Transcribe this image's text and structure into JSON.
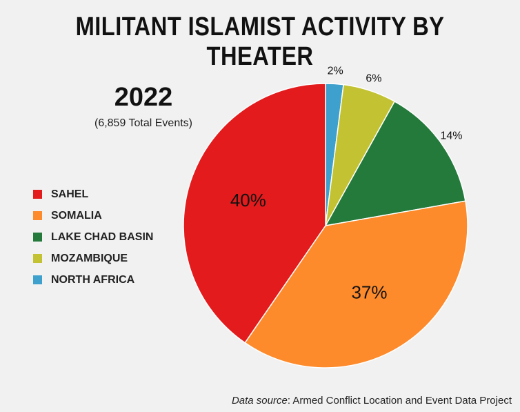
{
  "title": "MILITANT ISLAMIST ACTIVITY BY THEATER",
  "year": "2022",
  "total_events": "(6,859 Total Events)",
  "source": {
    "label": "Data source",
    "text": ": Armed Conflict Location and Event Data Project"
  },
  "chart_data": {
    "type": "pie",
    "title": "MILITANT ISLAMIST ACTIVITY BY THEATER",
    "subtitle": "2022",
    "note": "(6,859 Total Events)",
    "legend_position": "left",
    "start": "12 o'clock, clockwise",
    "slices": [
      {
        "name": "NORTH AFRICA",
        "value": 2,
        "label": "2%",
        "color": "#3ea0cc"
      },
      {
        "name": "MOZAMBIQUE",
        "value": 6,
        "label": "6%",
        "color": "#c2c232"
      },
      {
        "name": "LAKE CHAD BASIN",
        "value": 14,
        "label": "14%",
        "color": "#237a3b"
      },
      {
        "name": "SOMALIA",
        "value": 37,
        "label": "37%",
        "color": "#fd8a2b"
      },
      {
        "name": "SAHEL",
        "value": 40,
        "label": "40%",
        "color": "#e31b1c"
      }
    ],
    "legend_order": [
      "SAHEL",
      "SOMALIA",
      "LAKE CHAD BASIN",
      "MOZAMBIQUE",
      "NORTH AFRICA"
    ]
  }
}
